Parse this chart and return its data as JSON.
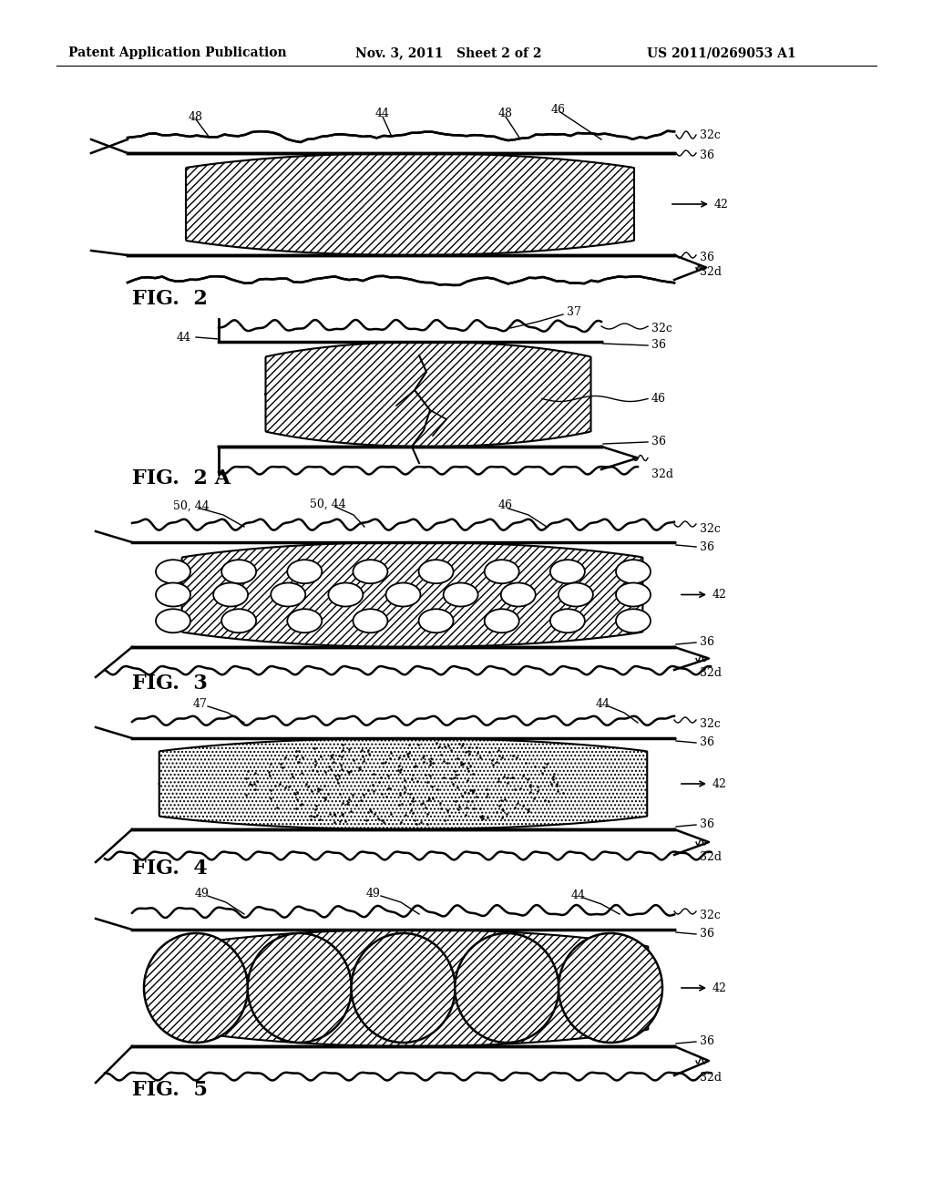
{
  "header_left": "Patent Application Publication",
  "header_mid": "Nov. 3, 2011   Sheet 2 of 2",
  "header_right": "US 2011/0269053 A1",
  "bg_color": "#ffffff",
  "line_color": "#000000"
}
